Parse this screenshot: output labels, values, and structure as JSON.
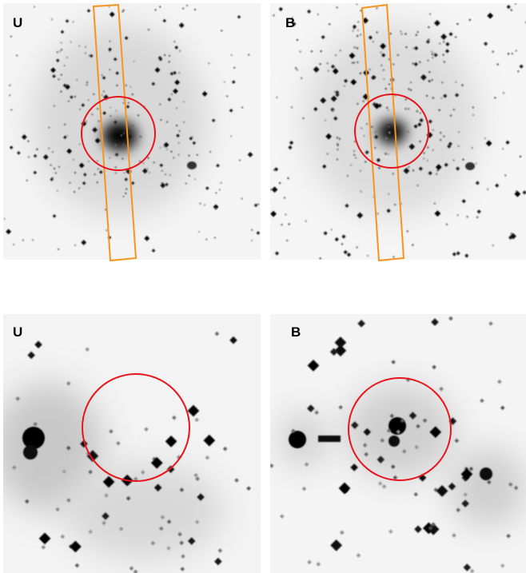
{
  "panels": [
    {
      "label": "U"
    },
    {
      "label": "B"
    },
    {
      "label": "U"
    },
    {
      "label": "B"
    }
  ]
}
